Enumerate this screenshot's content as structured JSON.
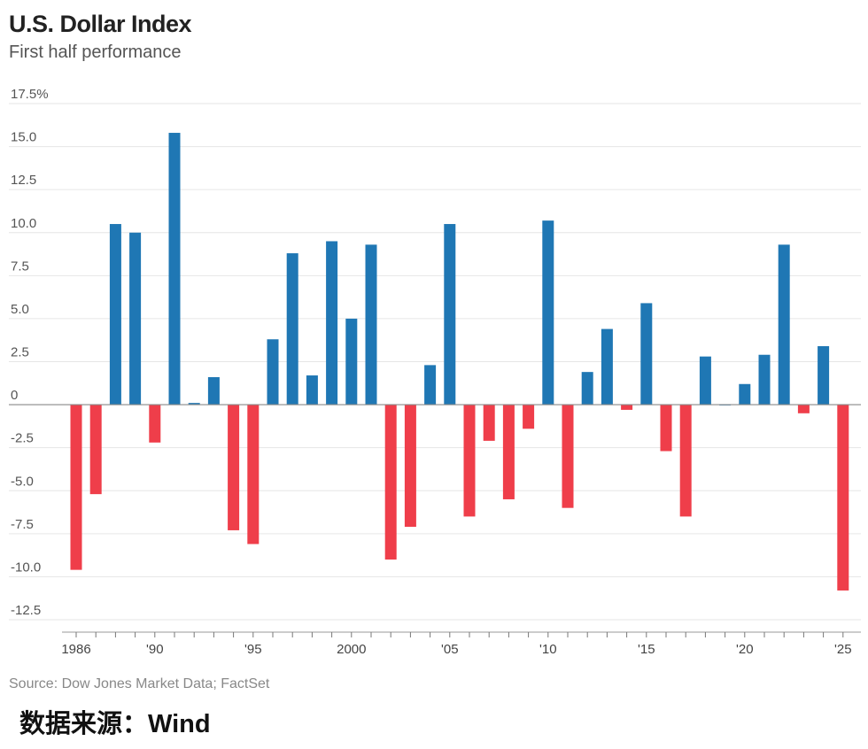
{
  "header": {
    "title": "U.S. Dollar Index",
    "subtitle": "First half performance"
  },
  "footer": {
    "source": "Source: Dow Jones Market Data; FactSet",
    "data_source_label": "数据来源：Wind"
  },
  "colors": {
    "positive": "#1f77b4",
    "negative": "#ef3e4a",
    "grid": "#e6e6e6",
    "zero_line": "#888888"
  },
  "chart_data": {
    "type": "bar",
    "title": "U.S. Dollar Index",
    "subtitle": "First half performance",
    "xlabel": "",
    "ylabel": "",
    "ylim": [
      -12.5,
      17.5
    ],
    "y_ticks": [
      {
        "value": 17.5,
        "label": "17.5%"
      },
      {
        "value": 15.0,
        "label": "15.0"
      },
      {
        "value": 12.5,
        "label": "12.5"
      },
      {
        "value": 10.0,
        "label": "10.0"
      },
      {
        "value": 7.5,
        "label": "7.5"
      },
      {
        "value": 5.0,
        "label": "5.0"
      },
      {
        "value": 2.5,
        "label": "2.5"
      },
      {
        "value": 0,
        "label": "0"
      },
      {
        "value": -2.5,
        "label": "-2.5"
      },
      {
        "value": -5.0,
        "label": "-5.0"
      },
      {
        "value": -7.5,
        "label": "-7.5"
      },
      {
        "value": -10.0,
        "label": "-10.0"
      },
      {
        "value": -12.5,
        "label": "-12.5"
      }
    ],
    "x_ticks": [
      {
        "year": 1986,
        "label": "1986"
      },
      {
        "year": 1990,
        "label": "'90"
      },
      {
        "year": 1995,
        "label": "'95"
      },
      {
        "year": 2000,
        "label": "2000"
      },
      {
        "year": 2005,
        "label": "'05"
      },
      {
        "year": 2010,
        "label": "'10"
      },
      {
        "year": 2015,
        "label": "'15"
      },
      {
        "year": 2020,
        "label": "'20"
      },
      {
        "year": 2025,
        "label": "'25"
      }
    ],
    "grid": true,
    "legend": "none",
    "x": [
      1986,
      1987,
      1988,
      1989,
      1990,
      1991,
      1992,
      1993,
      1994,
      1995,
      1996,
      1997,
      1998,
      1999,
      2000,
      2001,
      2002,
      2003,
      2004,
      2005,
      2006,
      2007,
      2008,
      2009,
      2010,
      2011,
      2012,
      2013,
      2014,
      2015,
      2016,
      2017,
      2018,
      2019,
      2020,
      2021,
      2022,
      2023,
      2024,
      2025
    ],
    "values": [
      -9.6,
      -5.2,
      10.5,
      10.0,
      -2.2,
      15.8,
      0.1,
      1.6,
      -7.3,
      -8.1,
      3.8,
      8.8,
      1.7,
      9.5,
      5.0,
      9.3,
      -9.0,
      -7.1,
      2.3,
      10.5,
      -6.5,
      -2.1,
      -5.5,
      -1.4,
      10.7,
      -6.0,
      1.9,
      4.4,
      -0.3,
      5.9,
      -2.7,
      -6.5,
      2.8,
      0.0,
      1.2,
      2.9,
      9.3,
      -0.5,
      3.4,
      -10.8
    ]
  }
}
